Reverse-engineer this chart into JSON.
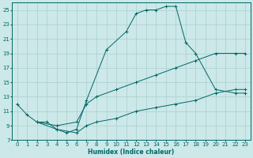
{
  "xlabel": "Humidex (Indice chaleur)",
  "bg_color": "#cce8e8",
  "grid_color": "#aacfcf",
  "line_color": "#006666",
  "xlim": [
    -0.5,
    23.5
  ],
  "ylim": [
    7,
    26
  ],
  "xticks": [
    0,
    1,
    2,
    3,
    4,
    5,
    6,
    7,
    8,
    9,
    10,
    11,
    12,
    13,
    14,
    15,
    16,
    17,
    18,
    19,
    20,
    21,
    22,
    23
  ],
  "yticks": [
    7,
    9,
    11,
    13,
    15,
    17,
    19,
    21,
    23,
    25
  ],
  "curve1_x": [
    0,
    1,
    2,
    3,
    4,
    5,
    6,
    7,
    9,
    11,
    12,
    13,
    14,
    15,
    16,
    17,
    18,
    20,
    22,
    23
  ],
  "curve1_y": [
    12.0,
    10.5,
    9.5,
    9.5,
    8.5,
    8.0,
    8.5,
    12.5,
    19.5,
    22.0,
    24.5,
    25.0,
    25.0,
    25.5,
    25.5,
    20.5,
    19.0,
    14.0,
    13.5,
    13.5
  ],
  "curve2_x": [
    2,
    4,
    6,
    7,
    8,
    10,
    12,
    14,
    16,
    18,
    20,
    22,
    23
  ],
  "curve2_y": [
    9.5,
    9.0,
    9.5,
    12.0,
    13.0,
    14.0,
    15.0,
    16.0,
    17.0,
    18.0,
    19.0,
    19.0,
    19.0
  ],
  "curve3_x": [
    2,
    4,
    6,
    7,
    8,
    10,
    12,
    14,
    16,
    18,
    20,
    22,
    23
  ],
  "curve3_y": [
    9.5,
    8.5,
    8.0,
    9.0,
    9.5,
    10.0,
    11.0,
    11.5,
    12.0,
    12.5,
    13.5,
    14.0,
    14.0
  ]
}
